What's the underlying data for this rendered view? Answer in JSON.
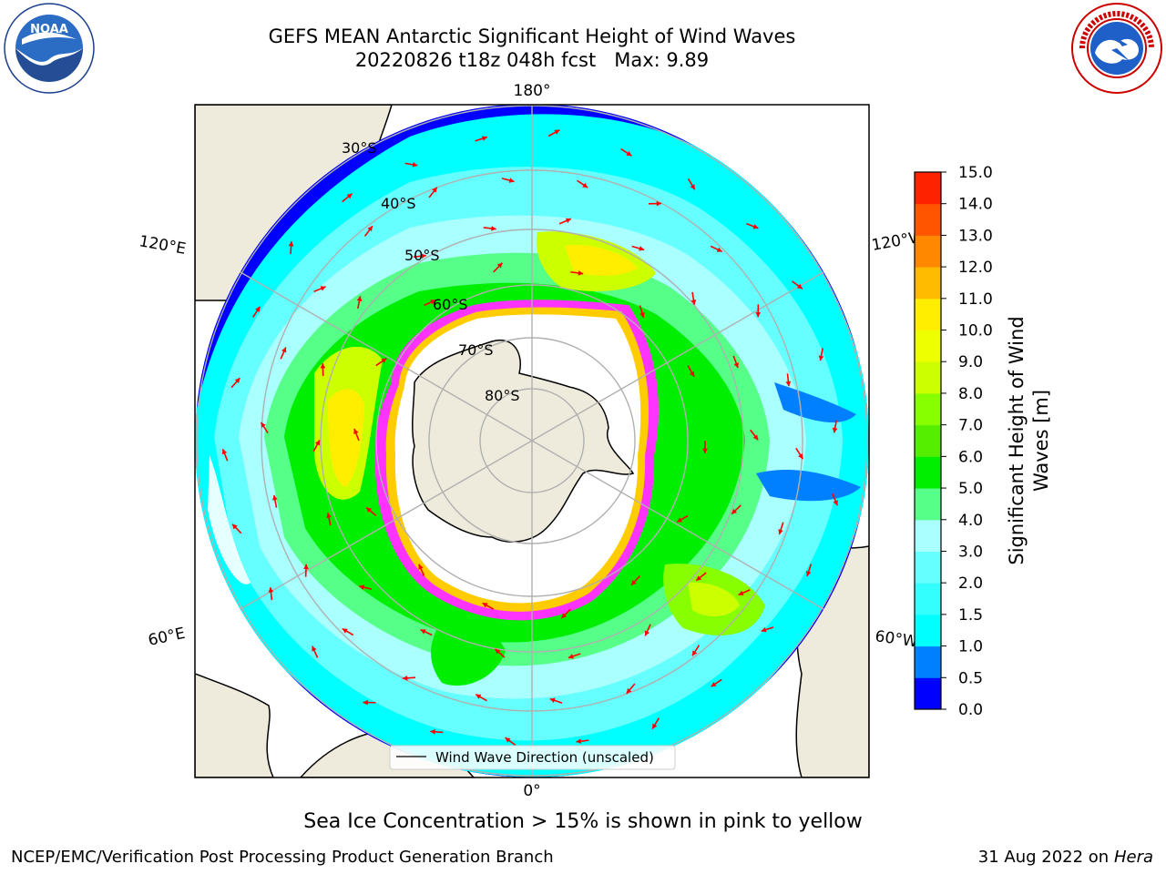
{
  "header": {
    "title_line_1": "GEFS MEAN Antarctic Significant Height of Wind Waves",
    "title_line_2": "20220826 t18z 048h fcst   Max: 9.89"
  },
  "logos": {
    "left": "NOAA",
    "right": "NATIONAL WEATHER SERVICE"
  },
  "map": {
    "projection": "south-polar-stereographic",
    "lon_labels": {
      "top": "180°",
      "bottom": "0°",
      "left_upper": "120°E",
      "left_lower": "60°E",
      "right_upper": "120°W",
      "right_lower": "60°W"
    },
    "lat_labels": [
      "30°S",
      "40°S",
      "50°S",
      "60°S",
      "70°S",
      "80°S"
    ],
    "legend_label": "Wind Wave Direction (unscaled)",
    "arrow_color": "#ff0000",
    "land_color": "#efebdc",
    "sea_ice_colors": [
      "#ff33ff",
      "#ffcc00"
    ]
  },
  "colorbar": {
    "label": "Significant Height of Wind Waves [m]",
    "label_line_1": "Significant Height of Wind",
    "label_line_2": "Waves [m]",
    "ticks": [
      "0.0",
      "0.5",
      "1.0",
      "1.5",
      "2.0",
      "3.0",
      "4.0",
      "5.0",
      "6.0",
      "7.0",
      "8.0",
      "9.0",
      "10.0",
      "11.0",
      "12.0",
      "13.0",
      "14.0",
      "15.0"
    ],
    "colors": [
      "#0000ff",
      "#0080ff",
      "#00ffff",
      "#33ffff",
      "#66ffff",
      "#aaffff",
      "#55ff88",
      "#00ee00",
      "#55ee00",
      "#88ff00",
      "#ccff00",
      "#eeff00",
      "#ffee00",
      "#ffbb00",
      "#ff8800",
      "#ff5500",
      "#ff2200",
      "#ff0000"
    ]
  },
  "subtitle": "Sea Ice Concentration > 15% is shown in pink to yellow",
  "footer": {
    "left": "NCEP/EMC/Verification Post Processing Product Generation Branch",
    "date": "31 Aug 2022 on",
    "machine": "Hera"
  }
}
